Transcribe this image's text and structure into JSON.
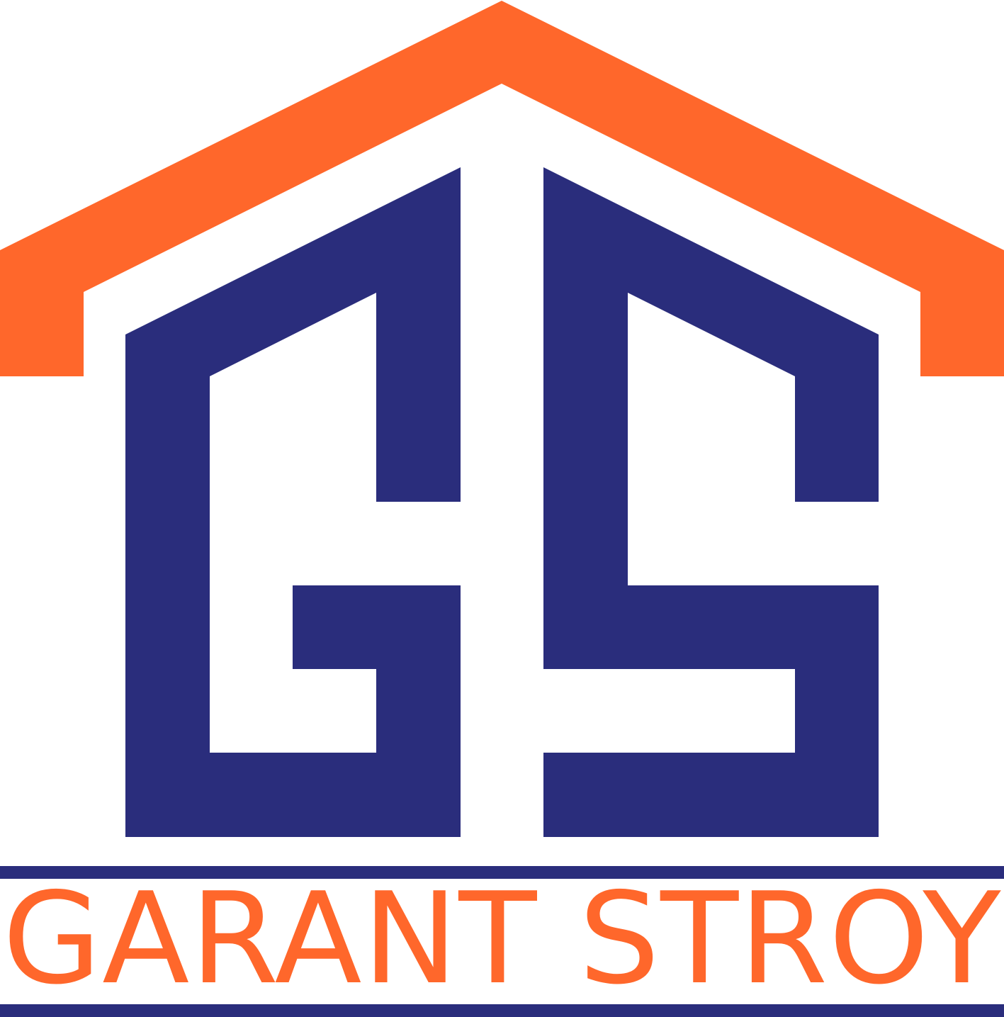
{
  "brand": {
    "name": "GARANT STROY",
    "monogram": "GS"
  },
  "colors": {
    "roof": "#ff672b",
    "letters": "#2a2d7c",
    "text": "#ff672b",
    "lines": "#2a2d7c",
    "background": "#ffffff"
  }
}
